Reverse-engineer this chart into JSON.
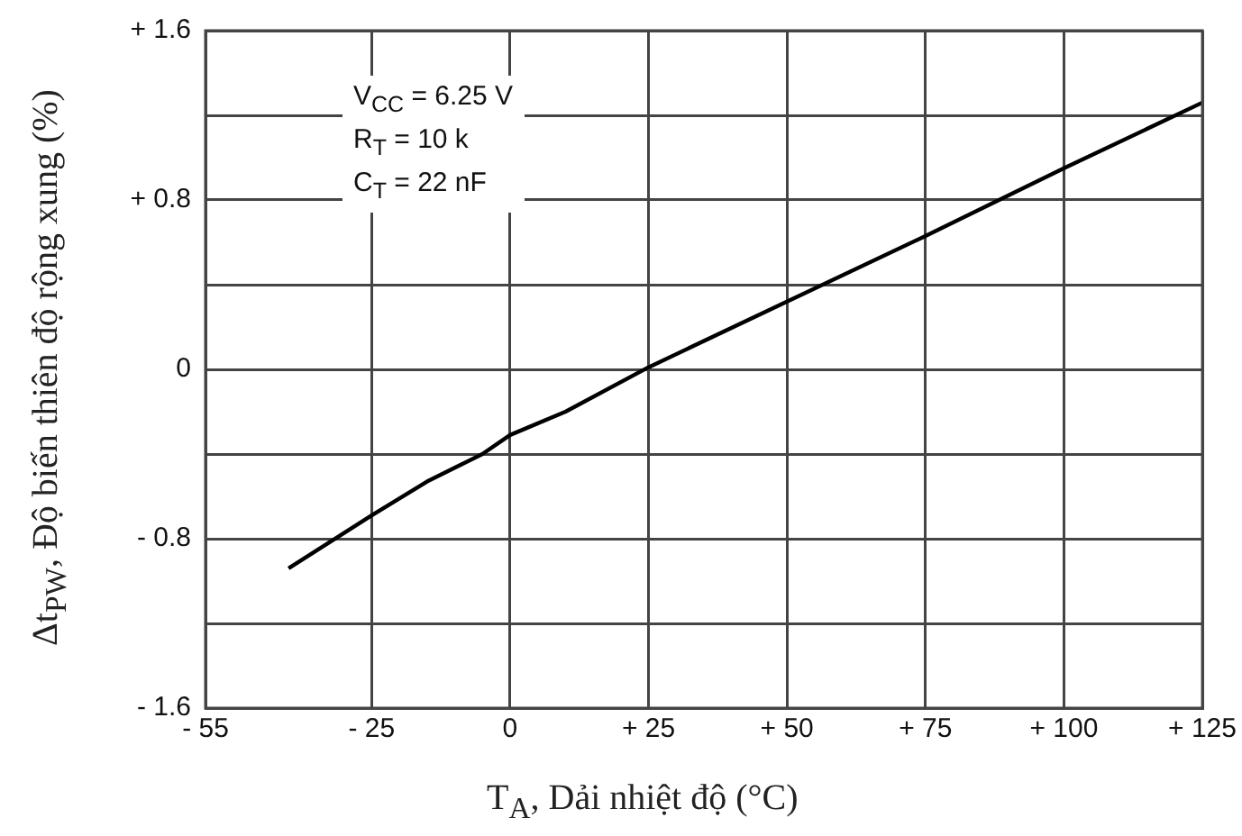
{
  "chart_data": {
    "type": "line",
    "xlabel": "T$_{A}$,  Dải nhiệt độ  (°C)",
    "ylabel": "Δt$_{PW}$, Độ biến thiên độ rộng xung (%)",
    "x": [
      -40,
      -31,
      -25,
      -15,
      -5,
      0,
      10,
      25,
      50,
      75,
      100,
      125
    ],
    "series": [
      {
        "color": "#000000",
        "values": [
          -0.94,
          -0.79,
          -0.69,
          -0.53,
          -0.4,
          -0.31,
          -0.2,
          0.01,
          0.32,
          0.63,
          0.95,
          1.26
        ]
      }
    ],
    "xlim": [
      -55,
      125
    ],
    "xticks": [
      {
        "value": -55,
        "label": "- 55"
      },
      {
        "value": -25,
        "label": "- 25"
      },
      0,
      {
        "value": 25,
        "label": "+ 25"
      },
      {
        "value": 50,
        "label": "+ 50"
      },
      {
        "value": 75,
        "label": "+ 75"
      },
      {
        "value": 100,
        "label": "+ 100"
      },
      {
        "value": 125,
        "label": "+ 125"
      }
    ],
    "ylim": [
      -1.6,
      1.6
    ],
    "yticks": [
      {
        "value": -1.6,
        "label": "- 1.6"
      },
      {
        "value": -1.2,
        "label": null
      },
      {
        "value": -0.8,
        "label": "- 0.8"
      },
      {
        "value": -0.4,
        "label": null
      },
      0,
      {
        "value": 0.4,
        "label": null
      },
      {
        "value": 0.8,
        "label": "+ 0.8"
      },
      {
        "value": 1.2,
        "label": null
      },
      {
        "value": 1.6,
        "label": "+ 1.6"
      }
    ],
    "grid": true,
    "marker": "none",
    "line_style": "solid",
    "legend": false,
    "annotations": [
      "V$_{CC}$ = 6.25 V",
      "R$_{T}$ = 10 k",
      "C$_{T}$ = 22 nF"
    ]
  }
}
